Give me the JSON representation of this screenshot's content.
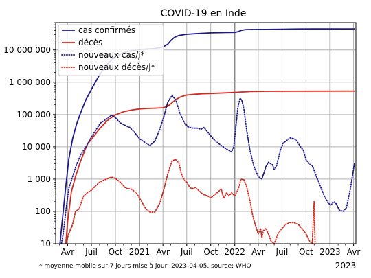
{
  "chart_data": {
    "type": "line",
    "title": "COVID-19 en Inde",
    "footnote": "* moyenne mobile sur 7 jours mise à jour: 2023-04-05, source: WHO",
    "x_tick_labels": [
      {
        "label": "Avr",
        "date": "2020-04-01"
      },
      {
        "label": "Juil",
        "date": "2020-07-01"
      },
      {
        "label": "Oct",
        "date": "2020-10-01"
      },
      {
        "label": "2021",
        "date": "2021-01-01"
      },
      {
        "label": "Avr",
        "date": "2021-04-01"
      },
      {
        "label": "Juil",
        "date": "2021-07-01"
      },
      {
        "label": "Oct",
        "date": "2021-10-01"
      },
      {
        "label": "2022",
        "date": "2022-01-01"
      },
      {
        "label": "Avr",
        "date": "2022-04-01"
      },
      {
        "label": "Juil",
        "date": "2022-07-01"
      },
      {
        "label": "Oct",
        "date": "2022-10-01"
      },
      {
        "label": "2023",
        "date": "2023-01-01"
      },
      {
        "label": "Avr",
        "date": "2023-04-01"
      }
    ],
    "x_year_label": "2023",
    "y_scale": "log",
    "ylim": [
      10,
      70000000
    ],
    "xlim": [
      "2020-02-15",
      "2023-04-10"
    ],
    "y_tick_labels": [
      "10",
      "100",
      "1 000",
      "10 000",
      "100 000",
      "1 000 000",
      "10 000 000"
    ],
    "y_tick_values": [
      10,
      100,
      1000,
      10000,
      100000,
      1000000,
      10000000
    ],
    "grid": true,
    "legend_position": "top-left",
    "colors": {
      "cases": "#1f1a8a",
      "deaths": "#d42a1e",
      "grid": "#b0b0b0"
    },
    "series": [
      {
        "name": "cas confirmés",
        "style": "solid",
        "color": "#1f1a8a",
        "points": [
          [
            "2020-03-01",
            5
          ],
          [
            "2020-03-15",
            100
          ],
          [
            "2020-03-25",
            600
          ],
          [
            "2020-04-05",
            4000
          ],
          [
            "2020-04-20",
            18000
          ],
          [
            "2020-05-05",
            50000
          ],
          [
            "2020-05-20",
            110000
          ],
          [
            "2020-06-10",
            290000
          ],
          [
            "2020-07-01",
            600000
          ],
          [
            "2020-08-01",
            1700000
          ],
          [
            "2020-09-01",
            3700000
          ],
          [
            "2020-10-01",
            6300000
          ],
          [
            "2020-11-01",
            8200000
          ],
          [
            "2020-12-01",
            9500000
          ],
          [
            "2021-01-01",
            10300000
          ],
          [
            "2021-02-01",
            10750000
          ],
          [
            "2021-03-01",
            11100000
          ],
          [
            "2021-04-01",
            12300000
          ],
          [
            "2021-04-20",
            15300000
          ],
          [
            "2021-05-01",
            19500000
          ],
          [
            "2021-05-15",
            24500000
          ],
          [
            "2021-06-01",
            28000000
          ],
          [
            "2021-07-01",
            30400000
          ],
          [
            "2021-08-01",
            31700000
          ],
          [
            "2021-09-01",
            32800000
          ],
          [
            "2021-10-01",
            33800000
          ],
          [
            "2021-11-01",
            34300000
          ],
          [
            "2021-12-01",
            34600000
          ],
          [
            "2022-01-01",
            34900000
          ],
          [
            "2022-01-15",
            37000000
          ],
          [
            "2022-01-25",
            40000000
          ],
          [
            "2022-02-10",
            42500000
          ],
          [
            "2022-03-01",
            42900000
          ],
          [
            "2022-05-01",
            43100000
          ],
          [
            "2022-07-01",
            43700000
          ],
          [
            "2022-09-01",
            44500000
          ],
          [
            "2022-11-01",
            44650000
          ],
          [
            "2023-01-01",
            44680000
          ],
          [
            "2023-04-05",
            44730000
          ]
        ]
      },
      {
        "name": "décès",
        "style": "solid",
        "color": "#d42a1e",
        "points": [
          [
            "2020-03-25",
            10
          ],
          [
            "2020-04-01",
            50
          ],
          [
            "2020-04-15",
            400
          ],
          [
            "2020-05-01",
            1200
          ],
          [
            "2020-05-20",
            3500
          ],
          [
            "2020-06-15",
            12000
          ],
          [
            "2020-07-01",
            17000
          ],
          [
            "2020-08-01",
            36000
          ],
          [
            "2020-09-01",
            66000
          ],
          [
            "2020-10-01",
            98000
          ],
          [
            "2020-11-01",
            122000
          ],
          [
            "2020-12-01",
            137000
          ],
          [
            "2021-01-01",
            149000
          ],
          [
            "2021-02-01",
            154000
          ],
          [
            "2021-03-01",
            157000
          ],
          [
            "2021-04-01",
            162000
          ],
          [
            "2021-04-20",
            182000
          ],
          [
            "2021-05-01",
            215000
          ],
          [
            "2021-05-20",
            290000
          ],
          [
            "2021-06-10",
            360000
          ],
          [
            "2021-07-01",
            400000
          ],
          [
            "2021-08-01",
            425000
          ],
          [
            "2021-09-01",
            440000
          ],
          [
            "2021-10-01",
            448000
          ],
          [
            "2021-11-01",
            458000
          ],
          [
            "2021-12-01",
            470000
          ],
          [
            "2022-01-01",
            481000
          ],
          [
            "2022-02-01",
            500000
          ],
          [
            "2022-03-01",
            515000
          ],
          [
            "2022-05-01",
            524000
          ],
          [
            "2022-08-01",
            527000
          ],
          [
            "2022-11-01",
            530000
          ],
          [
            "2023-04-05",
            531000
          ]
        ]
      },
      {
        "name": "nouveaux cas/j*",
        "style": "dotted",
        "color": "#1f1a8a",
        "points": [
          [
            "2020-03-05",
            5
          ],
          [
            "2020-03-15",
            20
          ],
          [
            "2020-03-25",
            100
          ],
          [
            "2020-04-05",
            500
          ],
          [
            "2020-04-20",
            1200
          ],
          [
            "2020-05-05",
            2800
          ],
          [
            "2020-05-20",
            5500
          ],
          [
            "2020-06-10",
            10000
          ],
          [
            "2020-07-01",
            20000
          ],
          [
            "2020-07-20",
            35000
          ],
          [
            "2020-08-05",
            55000
          ],
          [
            "2020-08-25",
            70000
          ],
          [
            "2020-09-16",
            95000
          ],
          [
            "2020-10-01",
            80000
          ],
          [
            "2020-10-20",
            55000
          ],
          [
            "2020-11-10",
            45000
          ],
          [
            "2020-11-25",
            40000
          ],
          [
            "2020-12-10",
            30000
          ],
          [
            "2021-01-01",
            18000
          ],
          [
            "2021-01-20",
            14000
          ],
          [
            "2021-02-10",
            11000
          ],
          [
            "2021-03-01",
            15000
          ],
          [
            "2021-03-20",
            35000
          ],
          [
            "2021-04-05",
            90000
          ],
          [
            "2021-04-20",
            250000
          ],
          [
            "2021-05-06",
            390000
          ],
          [
            "2021-05-20",
            280000
          ],
          [
            "2021-06-05",
            110000
          ],
          [
            "2021-06-20",
            60000
          ],
          [
            "2021-07-05",
            42000
          ],
          [
            "2021-07-25",
            38000
          ],
          [
            "2021-08-10",
            38000
          ],
          [
            "2021-08-25",
            35000
          ],
          [
            "2021-09-05",
            40000
          ],
          [
            "2021-09-20",
            28000
          ],
          [
            "2021-10-05",
            20000
          ],
          [
            "2021-10-20",
            15000
          ],
          [
            "2021-11-10",
            11000
          ],
          [
            "2021-12-01",
            8500
          ],
          [
            "2021-12-20",
            7000
          ],
          [
            "2021-12-28",
            10000
          ],
          [
            "2022-01-05",
            40000
          ],
          [
            "2022-01-12",
            150000
          ],
          [
            "2022-01-21",
            320000
          ],
          [
            "2022-01-28",
            280000
          ],
          [
            "2022-02-05",
            150000
          ],
          [
            "2022-02-15",
            35000
          ],
          [
            "2022-02-28",
            8000
          ],
          [
            "2022-03-15",
            2500
          ],
          [
            "2022-04-01",
            1200
          ],
          [
            "2022-04-15",
            1000
          ],
          [
            "2022-05-01",
            2500
          ],
          [
            "2022-05-10",
            3300
          ],
          [
            "2022-05-25",
            2800
          ],
          [
            "2022-06-01",
            2000
          ],
          [
            "2022-06-10",
            2600
          ],
          [
            "2022-06-25",
            8000
          ],
          [
            "2022-07-05",
            13000
          ],
          [
            "2022-07-20",
            16000
          ],
          [
            "2022-08-01",
            19000
          ],
          [
            "2022-08-15",
            18000
          ],
          [
            "2022-08-25",
            16000
          ],
          [
            "2022-09-10",
            10000
          ],
          [
            "2022-09-20",
            8000
          ],
          [
            "2022-10-01",
            4000
          ],
          [
            "2022-10-15",
            2900
          ],
          [
            "2022-10-25",
            2600
          ],
          [
            "2022-11-10",
            1200
          ],
          [
            "2022-11-25",
            600
          ],
          [
            "2022-12-10",
            300
          ],
          [
            "2022-12-25",
            180
          ],
          [
            "2023-01-05",
            160
          ],
          [
            "2023-01-15",
            200
          ],
          [
            "2023-01-25",
            170
          ],
          [
            "2023-02-05",
            110
          ],
          [
            "2023-02-20",
            100
          ],
          [
            "2023-03-05",
            130
          ],
          [
            "2023-03-20",
            500
          ],
          [
            "2023-04-05",
            3300
          ]
        ]
      },
      {
        "name": "nouveaux décès/j*",
        "style": "dotted",
        "color": "#d42a1e",
        "points": [
          [
            "2020-03-25",
            10
          ],
          [
            "2020-04-05",
            20
          ],
          [
            "2020-04-20",
            40
          ],
          [
            "2020-05-01",
            100
          ],
          [
            "2020-05-15",
            120
          ],
          [
            "2020-06-01",
            300
          ],
          [
            "2020-06-15",
            380
          ],
          [
            "2020-07-01",
            450
          ],
          [
            "2020-07-15",
            600
          ],
          [
            "2020-08-01",
            800
          ],
          [
            "2020-08-20",
            950
          ],
          [
            "2020-09-16",
            1150
          ],
          [
            "2020-10-01",
            1050
          ],
          [
            "2020-10-20",
            800
          ],
          [
            "2020-11-10",
            520
          ],
          [
            "2020-12-01",
            490
          ],
          [
            "2020-12-20",
            380
          ],
          [
            "2021-01-05",
            230
          ],
          [
            "2021-01-25",
            120
          ],
          [
            "2021-02-10",
            95
          ],
          [
            "2021-03-01",
            95
          ],
          [
            "2021-03-20",
            180
          ],
          [
            "2021-04-05",
            500
          ],
          [
            "2021-04-20",
            1500
          ],
          [
            "2021-05-05",
            3500
          ],
          [
            "2021-05-18",
            4100
          ],
          [
            "2021-06-01",
            3200
          ],
          [
            "2021-06-10",
            1500
          ],
          [
            "2021-06-20",
            1000
          ],
          [
            "2021-07-01",
            800
          ],
          [
            "2021-07-10",
            600
          ],
          [
            "2021-07-20",
            500
          ],
          [
            "2021-08-01",
            550
          ],
          [
            "2021-08-15",
            450
          ],
          [
            "2021-09-01",
            340
          ],
          [
            "2021-09-20",
            300
          ],
          [
            "2021-10-01",
            260
          ],
          [
            "2021-10-20",
            350
          ],
          [
            "2021-11-01",
            420
          ],
          [
            "2021-11-10",
            500
          ],
          [
            "2021-11-20",
            250
          ],
          [
            "2021-12-01",
            380
          ],
          [
            "2021-12-10",
            300
          ],
          [
            "2021-12-20",
            380
          ],
          [
            "2022-01-01",
            300
          ],
          [
            "2022-01-15",
            500
          ],
          [
            "2022-01-25",
            1000
          ],
          [
            "2022-02-05",
            950
          ],
          [
            "2022-02-15",
            600
          ],
          [
            "2022-03-01",
            200
          ],
          [
            "2022-03-10",
            80
          ],
          [
            "2022-03-20",
            40
          ],
          [
            "2022-04-01",
            20
          ],
          [
            "2022-04-10",
            30
          ],
          [
            "2022-04-15",
            15
          ],
          [
            "2022-04-20",
            25
          ],
          [
            "2022-05-01",
            30
          ],
          [
            "2022-05-10",
            20
          ],
          [
            "2022-05-20",
            12
          ],
          [
            "2022-06-01",
            10
          ],
          [
            "2022-06-15",
            20
          ],
          [
            "2022-07-01",
            30
          ],
          [
            "2022-07-15",
            40
          ],
          [
            "2022-08-01",
            45
          ],
          [
            "2022-08-15",
            45
          ],
          [
            "2022-09-01",
            40
          ],
          [
            "2022-09-15",
            30
          ],
          [
            "2022-10-01",
            20
          ],
          [
            "2022-10-15",
            12
          ],
          [
            "2022-10-25",
            10
          ],
          [
            "2022-11-01",
            200
          ],
          [
            "2022-11-05",
            8
          ],
          [
            "2023-03-25",
            3
          ]
        ]
      }
    ]
  }
}
